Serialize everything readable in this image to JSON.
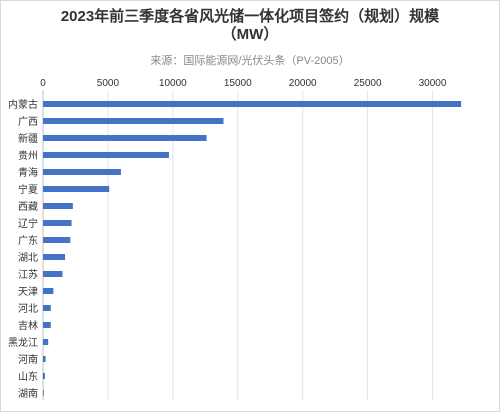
{
  "title_line1": "2023年前三季度各省风光储一体化项目签约（规划）规模",
  "title_line2": "（MW）",
  "subtitle": "来源：国际能源网/光伏头条（PV-2005）",
  "chart_data": {
    "type": "bar",
    "orientation": "horizontal",
    "title": "2023年前三季度各省风光储一体化项目签约（规划）规模（MW）",
    "source": "来源：国际能源网/光伏头条（PV-2005）",
    "categories": [
      "内蒙古",
      "广西",
      "新疆",
      "贵州",
      "青海",
      "宁夏",
      "西藏",
      "辽宁",
      "广东",
      "湖北",
      "江苏",
      "天津",
      "河北",
      "吉林",
      "黑龙江",
      "河南",
      "山东",
      "湖南"
    ],
    "values": [
      32200,
      13900,
      12600,
      9700,
      6000,
      5100,
      2300,
      2200,
      2100,
      1700,
      1500,
      800,
      600,
      600,
      400,
      200,
      150,
      20
    ],
    "xlim": [
      0,
      32500
    ],
    "xticks": [
      0,
      5000,
      10000,
      15000,
      20000,
      25000,
      30000
    ],
    "xaxis_position": "top",
    "grid": true,
    "bar_color": "#4472c4",
    "grid_color": "#e6e6e6"
  }
}
